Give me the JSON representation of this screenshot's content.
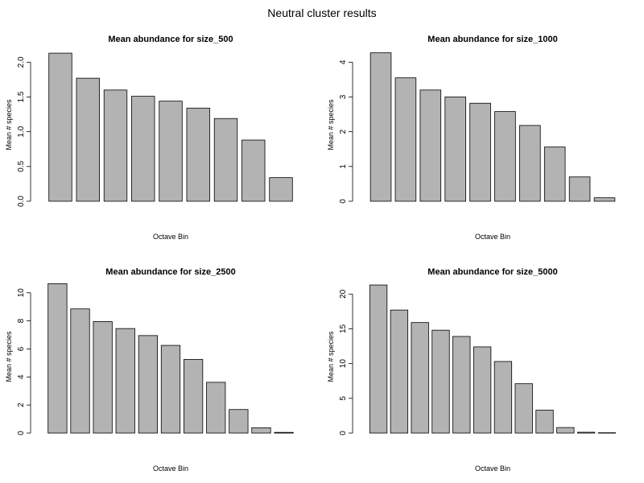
{
  "figure": {
    "title": "Neutral cluster results"
  },
  "colors": {
    "bar_fill": "#b3b3b3",
    "bar_stroke": "#000000",
    "text": "#000000"
  },
  "chart_data": [
    {
      "type": "bar",
      "title": "Mean abundance for size_500",
      "xlabel": "Octave Bin",
      "ylabel": "Mean # species",
      "ylim": [
        0,
        2.2
      ],
      "yticks": [
        0.0,
        0.5,
        1.0,
        1.5,
        2.0
      ],
      "ytick_labels": [
        "0.0",
        "0.5",
        "1.0",
        "1.5",
        "2.0"
      ],
      "values": [
        2.13,
        1.77,
        1.6,
        1.51,
        1.44,
        1.34,
        1.19,
        0.88,
        0.34
      ]
    },
    {
      "type": "bar",
      "title": "Mean abundance for size_1000",
      "xlabel": "Octave Bin",
      "ylabel": "Mean # species",
      "ylim": [
        0,
        4.4
      ],
      "yticks": [
        0,
        1,
        2,
        3,
        4
      ],
      "ytick_labels": [
        "0",
        "1",
        "2",
        "3",
        "4"
      ],
      "values": [
        4.27,
        3.55,
        3.2,
        3.0,
        2.82,
        2.58,
        2.18,
        1.56,
        0.7,
        0.1
      ]
    },
    {
      "type": "bar",
      "title": "Mean abundance for size_2500",
      "xlabel": "Octave Bin",
      "ylabel": "Mean # species",
      "ylim": [
        0,
        10.9
      ],
      "yticks": [
        0,
        2,
        4,
        6,
        8,
        10
      ],
      "ytick_labels": [
        "0",
        "2",
        "4",
        "6",
        "8",
        "10"
      ],
      "values": [
        10.65,
        8.85,
        7.95,
        7.45,
        6.95,
        6.25,
        5.25,
        3.62,
        1.68,
        0.38,
        0.05
      ]
    },
    {
      "type": "bar",
      "title": "Mean abundance for size_5000",
      "xlabel": "Octave Bin",
      "ylabel": "Mean # species",
      "ylim": [
        0,
        22
      ],
      "yticks": [
        0,
        5,
        10,
        15,
        20
      ],
      "ytick_labels": [
        "0",
        "5",
        "10",
        "15",
        "20"
      ],
      "values": [
        21.3,
        17.7,
        15.9,
        14.8,
        13.9,
        12.4,
        10.3,
        7.1,
        3.3,
        0.8,
        0.12,
        0.05
      ]
    }
  ]
}
